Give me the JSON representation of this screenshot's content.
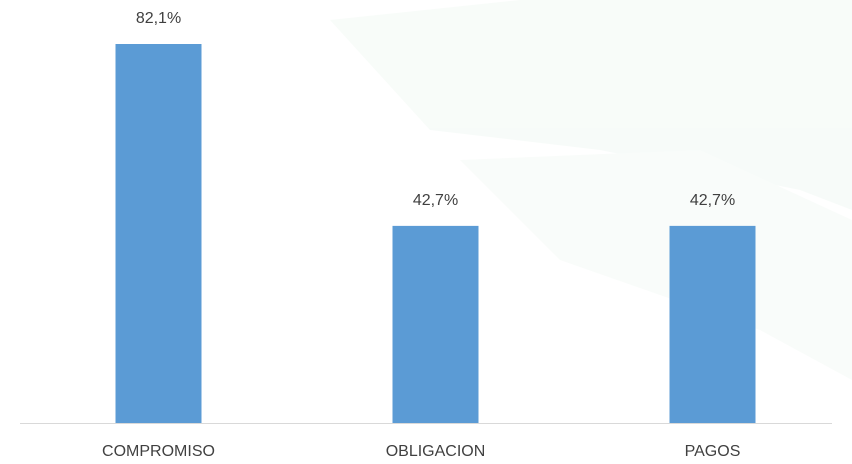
{
  "chart_data": {
    "type": "bar",
    "categories": [
      "COMPROMISO",
      "OBLIGACION",
      "PAGOS"
    ],
    "values": [
      82.1,
      42.7,
      42.7
    ],
    "value_labels": [
      "82,1%",
      "42,7%",
      "42,7%"
    ],
    "color": "#5b9bd5"
  }
}
